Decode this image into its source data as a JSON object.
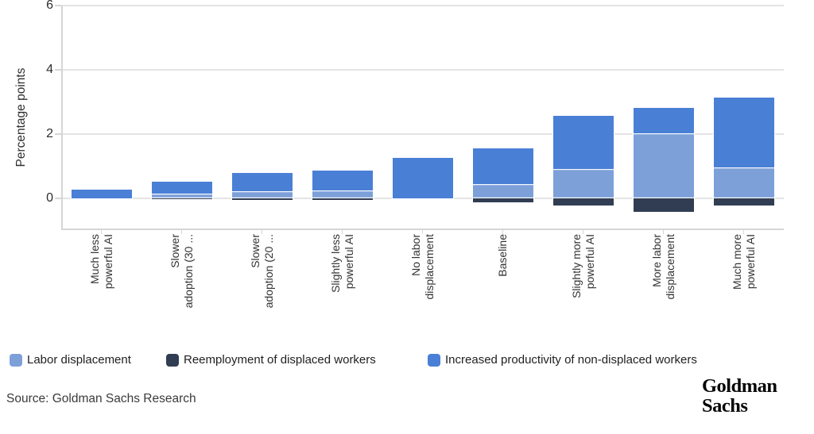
{
  "chart": {
    "source_note": "Source: Goldman Sachs Research",
    "logo": {
      "line1": "Goldman",
      "line2": "Sachs"
    }
  },
  "chart_data": {
    "type": "bar",
    "stacked": true,
    "title": "",
    "xlabel": "",
    "ylabel": "Percentage points",
    "yticks": [
      0,
      2,
      4,
      6
    ],
    "ylim": [
      -0.95,
      6
    ],
    "grid": true,
    "legend_position": "bottom",
    "categories": [
      "Much less powerful AI",
      "Slower adoption (30 ...",
      "Slower adoption (20 ...",
      "Slightly less powerful AI",
      "No labor displacement",
      "Baseline",
      "Slightly more powerful AI",
      "More labor displacement",
      "Much more powerful AI"
    ],
    "category_lines": [
      [
        "Much less",
        "powerful AI"
      ],
      [
        "Slower",
        "adoption (30 ..."
      ],
      [
        "Slower",
        "adoption (20 ..."
      ],
      [
        "Slightly less",
        "powerful AI"
      ],
      [
        "No labor",
        "displacement"
      ],
      [
        "Baseline"
      ],
      [
        "Slightly more",
        "powerful AI"
      ],
      [
        "More labor",
        "displacement"
      ],
      [
        "Much more",
        "powerful AI"
      ]
    ],
    "series": [
      {
        "name": "Labor displacement",
        "color": "#7da0d9",
        "values": [
          0,
          0.15,
          0.22,
          0.24,
          0,
          0.45,
          0.92,
          2.02,
          0.97
        ]
      },
      {
        "name": "Reemployment of displaced workers",
        "color": "#313d52",
        "values": [
          0,
          -0.03,
          -0.05,
          -0.05,
          0,
          -0.12,
          -0.22,
          -0.42,
          -0.22
        ]
      },
      {
        "name": "Increased productivity of non-displaced workers",
        "color": "#4a7fd6",
        "values": [
          0.27,
          0.36,
          0.56,
          0.63,
          1.25,
          1.11,
          1.64,
          0.79,
          2.16
        ]
      }
    ],
    "stack_totals": [
      0.27,
      0.51,
      0.78,
      0.87,
      1.25,
      1.56,
      2.56,
      2.81,
      3.13
    ]
  }
}
